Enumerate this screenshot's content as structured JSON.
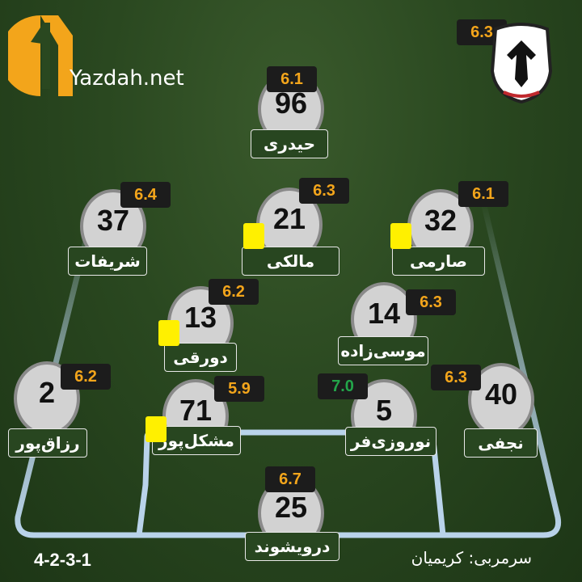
{
  "brand": {
    "site": "Yazdah.net",
    "accent": "#f3a51b"
  },
  "team": {
    "rating": "6.3",
    "crest_icon": "eagle-crest"
  },
  "formation": "4-2-3-1",
  "coach": "سرمربی: کریمیان",
  "colors": {
    "rating_text": "#f3a51b",
    "rating_high": "#23a54a",
    "yellow_card": "#fff000",
    "pitch_lines": "#b9d3ea"
  },
  "players": [
    {
      "number": "96",
      "name": "حیدری",
      "rating": "6.1",
      "yellow_card": false
    },
    {
      "number": "37",
      "name": "شریفات",
      "rating": "6.4",
      "yellow_card": false
    },
    {
      "number": "21",
      "name": "مالکی",
      "rating": "6.3",
      "yellow_card": true
    },
    {
      "number": "32",
      "name": "صارمی",
      "rating": "6.1",
      "yellow_card": true
    },
    {
      "number": "13",
      "name": "دورقی",
      "rating": "6.2",
      "yellow_card": true
    },
    {
      "number": "14",
      "name": "موسی‌زاده",
      "rating": "6.3",
      "yellow_card": false
    },
    {
      "number": "2",
      "name": "رزاق‌پور",
      "rating": "6.2",
      "yellow_card": false
    },
    {
      "number": "71",
      "name": "مشکل‌پور",
      "rating": "5.9",
      "yellow_card": true
    },
    {
      "number": "5",
      "name": "نوروزی‌فر",
      "rating": "7.0",
      "yellow_card": false
    },
    {
      "number": "40",
      "name": "نجفی",
      "rating": "6.3",
      "yellow_card": false
    },
    {
      "number": "25",
      "name": "درویشوند",
      "rating": "6.7",
      "yellow_card": false
    }
  ]
}
